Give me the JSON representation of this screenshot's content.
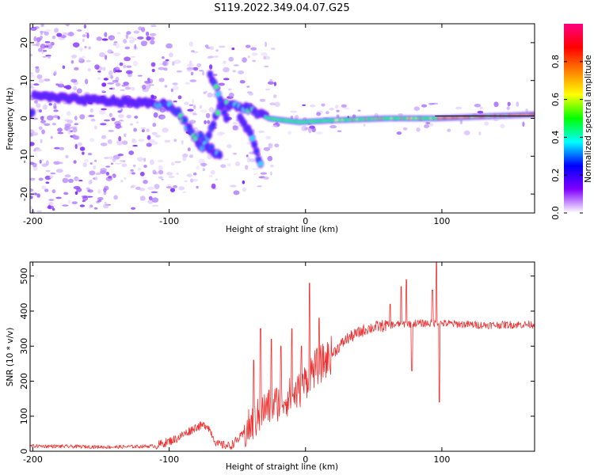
{
  "title": "S119.2022.349.04.07.G25",
  "chart_data": [
    {
      "type": "heatmap",
      "xlabel": "Height of straight line (km)",
      "ylabel": "Frequency (Hz)",
      "xlim": [
        -202,
        168
      ],
      "ylim": [
        -25,
        25
      ],
      "xticks": [
        -200,
        -100,
        0,
        100
      ],
      "yticks": [
        -20,
        -10,
        0,
        10,
        20
      ],
      "colorbar": {
        "label": "Normalized spectral amplitude",
        "range": [
          0,
          1
        ],
        "ticks": [
          0.0,
          0.2,
          0.4,
          0.6,
          0.8
        ],
        "tick_labels": [
          "0.0",
          "0.2",
          "0.4",
          "0.6",
          "0.8"
        ],
        "colors": [
          "#ffffff",
          "#8000ff",
          "#0000ff",
          "#00ffff",
          "#00ff00",
          "#ffff00",
          "#ff8000",
          "#ff0000",
          "#ff0080"
        ]
      },
      "ridge": [
        {
          "x": -200,
          "y": 6
        },
        {
          "x": -170,
          "y": 5
        },
        {
          "x": -140,
          "y": 4.5
        },
        {
          "x": -115,
          "y": 4
        },
        {
          "x": -100,
          "y": 3.5
        },
        {
          "x": -92,
          "y": 1
        },
        {
          "x": -85,
          "y": -3
        },
        {
          "x": -75,
          "y": -8
        },
        {
          "x": -62,
          "y": 4
        },
        {
          "x": -50,
          "y": 3
        },
        {
          "x": -40,
          "y": 2.5
        },
        {
          "x": -28,
          "y": 0
        },
        {
          "x": -5,
          "y": -1
        },
        {
          "x": 20,
          "y": -0.5
        },
        {
          "x": 60,
          "y": 0
        },
        {
          "x": 95,
          "y": 0
        },
        {
          "x": 130,
          "y": 0.5
        },
        {
          "x": 168,
          "y": 1
        }
      ],
      "branches": [
        [
          {
            "x": -78,
            "y": -4
          },
          {
            "x": -70,
            "y": -8
          },
          {
            "x": -62,
            "y": -10
          }
        ],
        [
          {
            "x": -48,
            "y": 0
          },
          {
            "x": -40,
            "y": -4
          },
          {
            "x": -33,
            "y": -12
          }
        ],
        [
          {
            "x": -70,
            "y": 12
          },
          {
            "x": -62,
            "y": 5
          },
          {
            "x": -58,
            "y": 0
          }
        ]
      ],
      "reference_line": {
        "x_start": 95,
        "x_end": 168,
        "y": 0
      }
    },
    {
      "type": "line",
      "xlabel": "Height of straight line (km)",
      "ylabel": "SNR (10 * v/v)",
      "xlim": [
        -202,
        168
      ],
      "ylim": [
        0,
        540
      ],
      "xticks": [
        -200,
        -100,
        0,
        100
      ],
      "yticks": [
        0,
        100,
        200,
        300,
        400,
        500
      ],
      "color": "#f03030",
      "trend": [
        {
          "x": -202,
          "y": 15
        },
        {
          "x": -140,
          "y": 12
        },
        {
          "x": -110,
          "y": 15
        },
        {
          "x": -95,
          "y": 35
        },
        {
          "x": -80,
          "y": 70
        },
        {
          "x": -72,
          "y": 75
        },
        {
          "x": -65,
          "y": 20
        },
        {
          "x": -55,
          "y": 15
        },
        {
          "x": -45,
          "y": 50
        },
        {
          "x": -30,
          "y": 120
        },
        {
          "x": -15,
          "y": 150
        },
        {
          "x": -5,
          "y": 170
        },
        {
          "x": 5,
          "y": 230
        },
        {
          "x": 15,
          "y": 260
        },
        {
          "x": 30,
          "y": 320
        },
        {
          "x": 45,
          "y": 350
        },
        {
          "x": 60,
          "y": 360
        },
        {
          "x": 80,
          "y": 365
        },
        {
          "x": 100,
          "y": 365
        },
        {
          "x": 130,
          "y": 360
        },
        {
          "x": 168,
          "y": 362
        }
      ],
      "spikes": [
        {
          "x": -38,
          "y": 260
        },
        {
          "x": -33,
          "y": 350
        },
        {
          "x": -25,
          "y": 320
        },
        {
          "x": -18,
          "y": 300
        },
        {
          "x": -10,
          "y": 350
        },
        {
          "x": -3,
          "y": 300
        },
        {
          "x": 3,
          "y": 480
        },
        {
          "x": 10,
          "y": 380
        },
        {
          "x": 62,
          "y": 420
        },
        {
          "x": 70,
          "y": 470
        },
        {
          "x": 74,
          "y": 490
        },
        {
          "x": 78,
          "y": 230
        },
        {
          "x": 93,
          "y": 460
        },
        {
          "x": 96,
          "y": 540
        },
        {
          "x": 98,
          "y": 140
        }
      ]
    }
  ]
}
